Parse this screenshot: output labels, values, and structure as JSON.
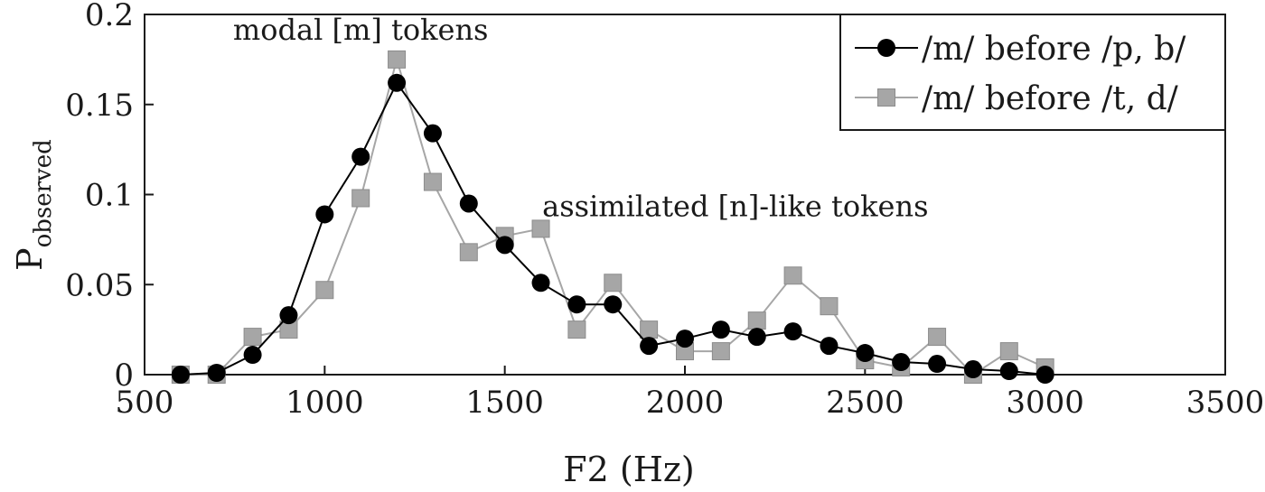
{
  "chart_data": {
    "type": "line",
    "xlabel": "F2 (Hz)",
    "ylabel_main": "P",
    "ylabel_sub": "observed",
    "xlim": [
      500,
      3500
    ],
    "ylim": [
      0,
      0.2
    ],
    "xticks": [
      500,
      1000,
      1500,
      2000,
      2500,
      3000,
      3500
    ],
    "yticks": [
      0,
      0.05,
      0.1,
      0.15,
      0.2
    ],
    "xtick_labels": [
      "500",
      "1000",
      "1500",
      "2000",
      "2500",
      "3000",
      "3500"
    ],
    "ytick_labels": [
      "0",
      "0.05",
      "0.1",
      "0.15",
      "0.2"
    ],
    "grid": false,
    "legend_position": "top-right",
    "annotations": [
      {
        "text": "modal [m] tokens",
        "x": 1100,
        "y": 0.186
      },
      {
        "text": "assimilated [n]-like tokens",
        "x": 2140,
        "y": 0.088
      }
    ],
    "series": [
      {
        "name": "/m/ before /p, b/",
        "color": "#000000",
        "marker": "circle",
        "x": [
          600,
          700,
          800,
          900,
          1000,
          1100,
          1200,
          1300,
          1400,
          1500,
          1600,
          1700,
          1800,
          1900,
          2000,
          2100,
          2200,
          2300,
          2400,
          2500,
          2600,
          2700,
          2800,
          2900,
          3000
        ],
        "y": [
          0,
          0.001,
          0.011,
          0.033,
          0.089,
          0.121,
          0.162,
          0.134,
          0.095,
          0.072,
          0.051,
          0.039,
          0.039,
          0.016,
          0.02,
          0.025,
          0.021,
          0.024,
          0.016,
          0.012,
          0.007,
          0.006,
          0.003,
          0.002,
          0
        ]
      },
      {
        "name": "/m/ before /t, d/",
        "color": "#a6a6a6",
        "marker": "square",
        "x": [
          600,
          700,
          800,
          900,
          1000,
          1100,
          1200,
          1300,
          1400,
          1500,
          1600,
          1700,
          1800,
          1900,
          2000,
          2100,
          2200,
          2300,
          2400,
          2500,
          2600,
          2700,
          2800,
          2900,
          3000
        ],
        "y": [
          0,
          0,
          0.021,
          0.025,
          0.047,
          0.098,
          0.175,
          0.107,
          0.068,
          0.077,
          0.081,
          0.025,
          0.051,
          0.025,
          0.013,
          0.013,
          0.03,
          0.055,
          0.038,
          0.008,
          0.004,
          0.021,
          0,
          0.013,
          0.004
        ]
      }
    ]
  }
}
